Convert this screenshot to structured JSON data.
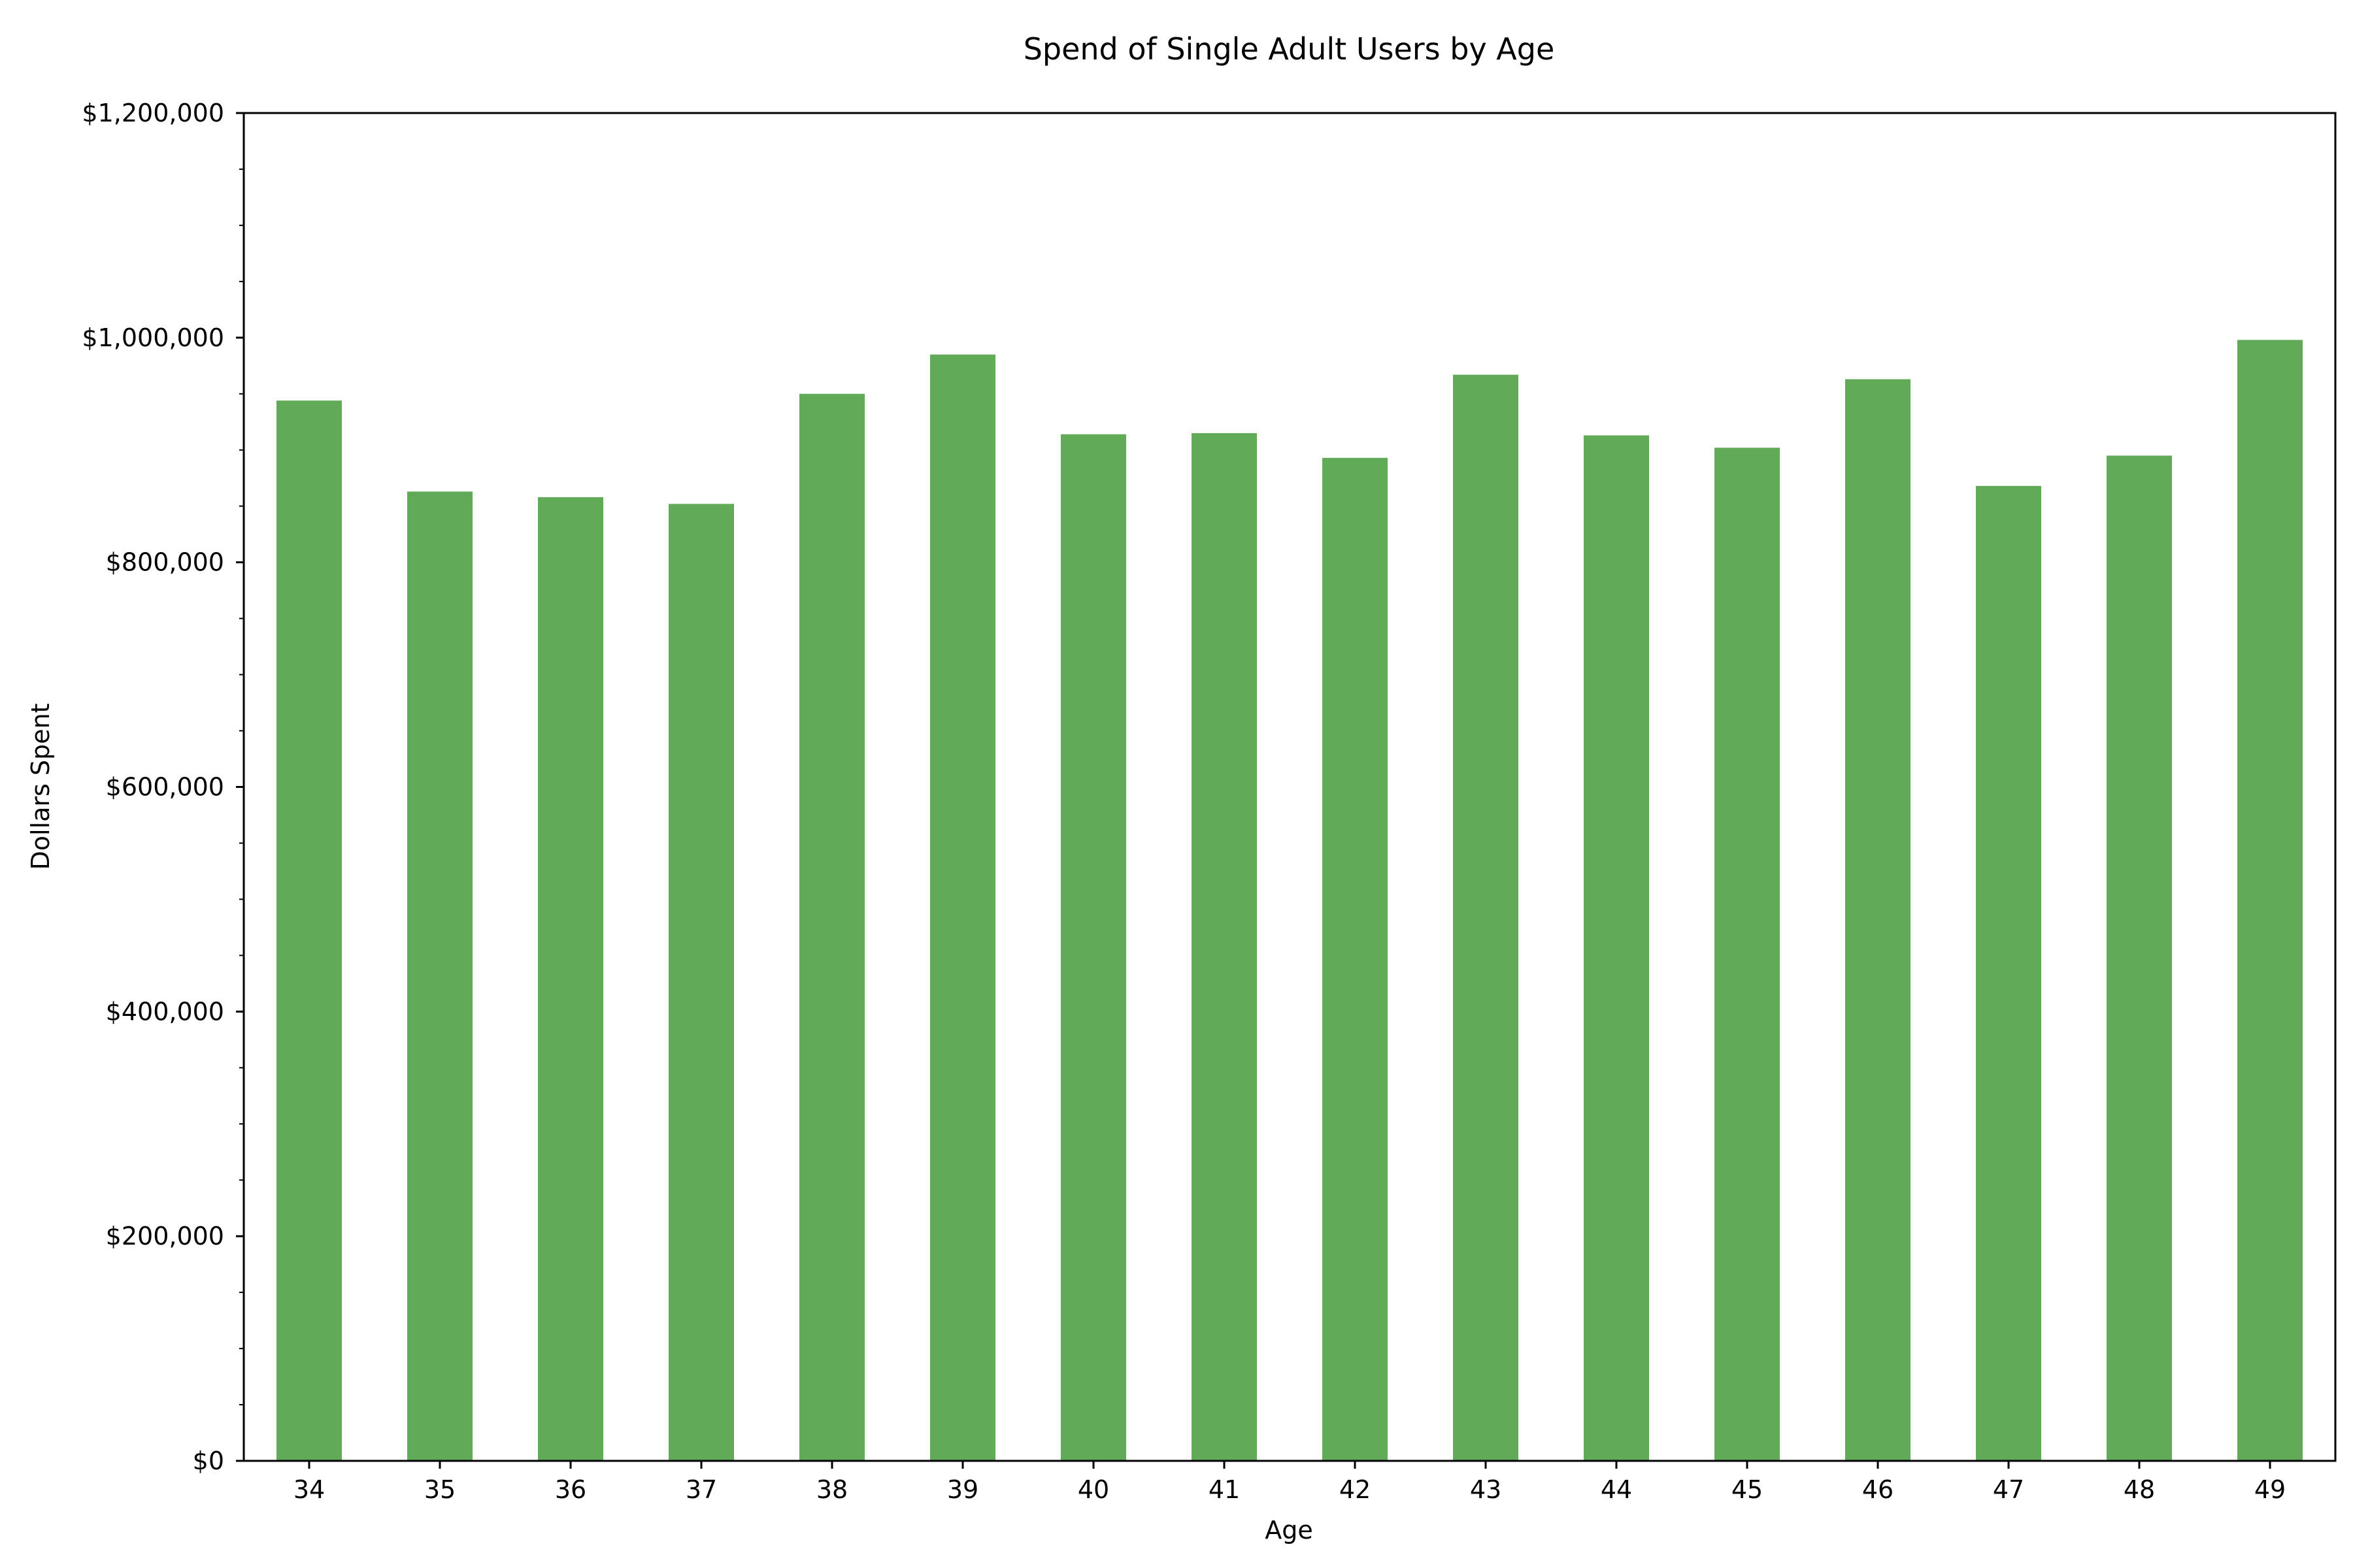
{
  "chart_data": {
    "type": "bar",
    "title": "Spend of Single Adult Users by Age",
    "xlabel": "Age",
    "ylabel": "Dollars Spent",
    "categories": [
      "34",
      "35",
      "36",
      "37",
      "38",
      "39",
      "40",
      "41",
      "42",
      "43",
      "44",
      "45",
      "46",
      "47",
      "48",
      "49"
    ],
    "values": [
      944000,
      863000,
      858000,
      852000,
      950000,
      985000,
      914000,
      915000,
      893000,
      967000,
      913000,
      902000,
      963000,
      868000,
      895000,
      998000
    ],
    "ylim": [
      0,
      1200000
    ],
    "yticks": [
      0,
      200000,
      400000,
      600000,
      800000,
      1000000,
      1200000
    ],
    "ytick_labels": [
      "$0",
      "$200,000",
      "$400,000",
      "$600,000",
      "$800,000",
      "$1,000,000",
      "$1,200,000"
    ],
    "yminor_step": 50000,
    "grid": false,
    "legend": "none",
    "bar_color": "#61ab58"
  }
}
